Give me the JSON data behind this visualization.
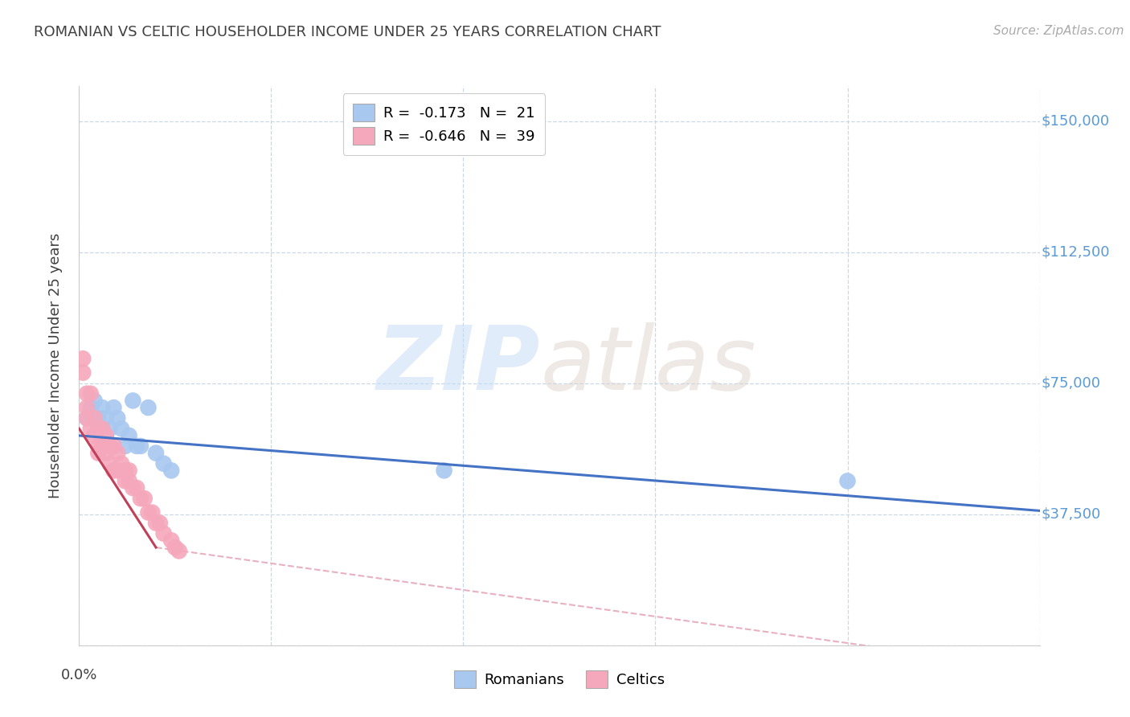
{
  "title": "ROMANIAN VS CELTIC HOUSEHOLDER INCOME UNDER 25 YEARS CORRELATION CHART",
  "source": "Source: ZipAtlas.com",
  "ylabel": "Householder Income Under 25 years",
  "xlim": [
    0.0,
    0.25
  ],
  "ylim": [
    0,
    160000
  ],
  "yticks": [
    0,
    37500,
    75000,
    112500,
    150000
  ],
  "ytick_labels": [
    "",
    "$37,500",
    "$75,000",
    "$112,500",
    "$150,000"
  ],
  "xtick_positions": [
    0.0,
    0.05,
    0.1,
    0.15,
    0.2,
    0.25
  ],
  "watermark_zip": "ZIP",
  "watermark_atlas": "atlas",
  "legend_romanian": "R =  -0.173   N =  21",
  "legend_celtic": "R =  -0.646   N =  39",
  "romanian_color": "#a8c8f0",
  "celtic_color": "#f5a8bc",
  "romanian_line_color": "#4472c4",
  "celtic_line_color": "#c0405a",
  "celtic_extrap_color": "#e8b0c0",
  "title_color": "#404040",
  "ylabel_color": "#404040",
  "tick_label_color": "#5b9bd5",
  "grid_color": "#c8d8e8",
  "background_color": "#ffffff",
  "romanian_points": [
    [
      0.002,
      65000
    ],
    [
      0.003,
      68000
    ],
    [
      0.004,
      70000
    ],
    [
      0.005,
      65000
    ],
    [
      0.006,
      68000
    ],
    [
      0.007,
      65000
    ],
    [
      0.008,
      62000
    ],
    [
      0.009,
      68000
    ],
    [
      0.01,
      65000
    ],
    [
      0.011,
      62000
    ],
    [
      0.012,
      57000
    ],
    [
      0.013,
      60000
    ],
    [
      0.014,
      70000
    ],
    [
      0.015,
      57000
    ],
    [
      0.016,
      57000
    ],
    [
      0.018,
      68000
    ],
    [
      0.02,
      55000
    ],
    [
      0.022,
      52000
    ],
    [
      0.024,
      50000
    ],
    [
      0.095,
      50000
    ],
    [
      0.2,
      47000
    ]
  ],
  "celtic_points": [
    [
      0.001,
      82000
    ],
    [
      0.001,
      78000
    ],
    [
      0.002,
      72000
    ],
    [
      0.002,
      68000
    ],
    [
      0.002,
      65000
    ],
    [
      0.003,
      72000
    ],
    [
      0.003,
      62000
    ],
    [
      0.004,
      65000
    ],
    [
      0.004,
      60000
    ],
    [
      0.005,
      62000
    ],
    [
      0.005,
      57000
    ],
    [
      0.005,
      55000
    ],
    [
      0.006,
      62000
    ],
    [
      0.006,
      57000
    ],
    [
      0.007,
      60000
    ],
    [
      0.007,
      55000
    ],
    [
      0.008,
      57000
    ],
    [
      0.008,
      52000
    ],
    [
      0.009,
      57000
    ],
    [
      0.009,
      50000
    ],
    [
      0.01,
      55000
    ],
    [
      0.01,
      50000
    ],
    [
      0.011,
      52000
    ],
    [
      0.012,
      50000
    ],
    [
      0.012,
      47000
    ],
    [
      0.013,
      50000
    ],
    [
      0.013,
      47000
    ],
    [
      0.014,
      45000
    ],
    [
      0.015,
      45000
    ],
    [
      0.016,
      42000
    ],
    [
      0.017,
      42000
    ],
    [
      0.018,
      38000
    ],
    [
      0.019,
      38000
    ],
    [
      0.02,
      35000
    ],
    [
      0.021,
      35000
    ],
    [
      0.022,
      32000
    ],
    [
      0.024,
      30000
    ],
    [
      0.025,
      28000
    ],
    [
      0.026,
      27000
    ]
  ],
  "romanian_trendline": [
    [
      0.0,
      60000
    ],
    [
      0.25,
      38500
    ]
  ],
  "celtic_trendline_solid": [
    [
      0.0,
      62000
    ],
    [
      0.02,
      28000
    ]
  ],
  "celtic_trendline_dashed": [
    [
      0.02,
      28000
    ],
    [
      0.27,
      -10000
    ]
  ]
}
